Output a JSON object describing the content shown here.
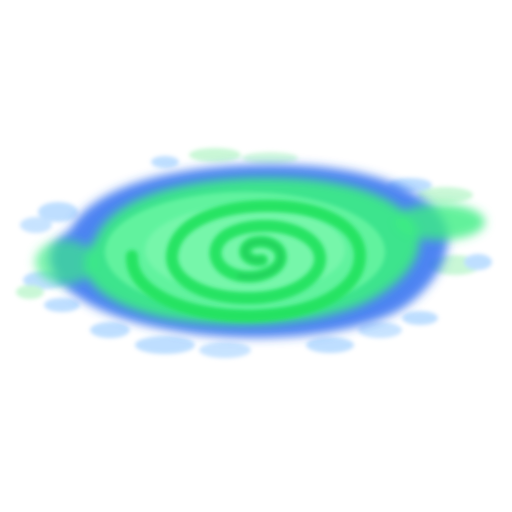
{
  "sprite": {
    "subject": "swirl-portal",
    "icon": "spiral-swirl-icon",
    "colors": {
      "background": "#ffffff",
      "outer_halo": "#a9d4ff",
      "outer_ring": "#2f6ff0",
      "mid_ring": "#3bee82",
      "inner_glow": "#6ef7a4",
      "spiral_stroke": "#22e35f",
      "spiral_dark": "#1fc95a"
    }
  }
}
